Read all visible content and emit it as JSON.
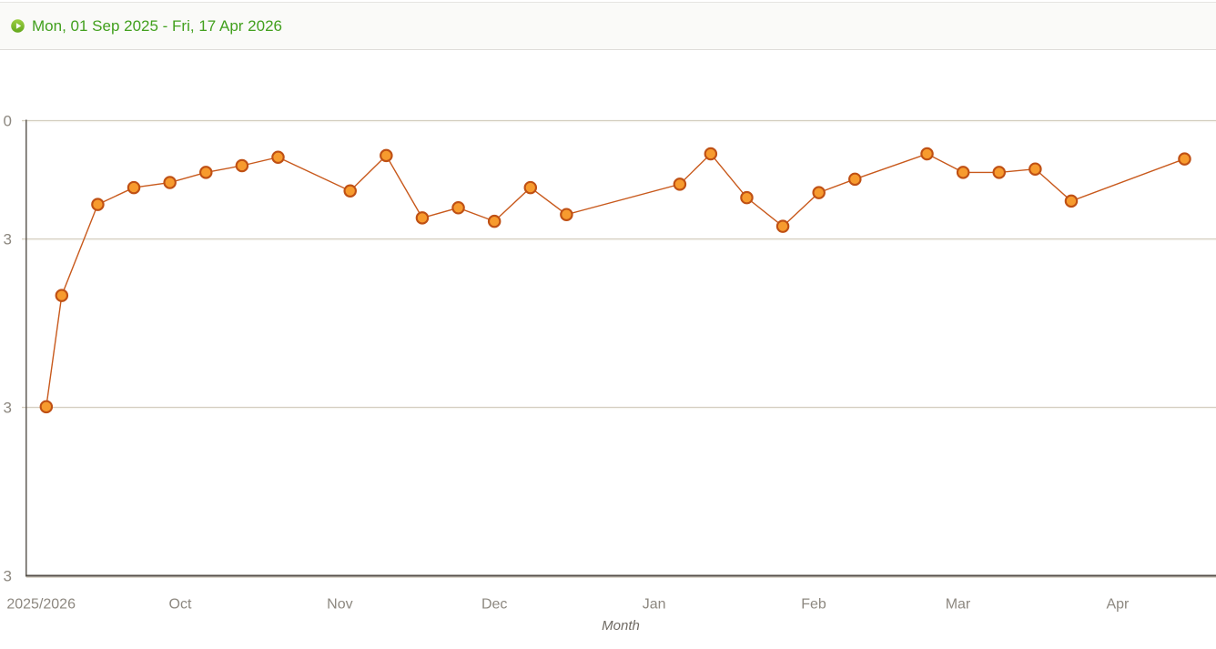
{
  "header": {
    "date_range_label": "Mon, 01 Sep 2025 - Fri, 17 Apr 2026",
    "icon": "play-icon",
    "text_color": "#42a01e",
    "icon_green_light": "#9ecf44",
    "icon_green_dark": "#63a71c",
    "bar_background": "#fafaf8",
    "border_color": "#dedcd9"
  },
  "chart_data": {
    "type": "line",
    "title": "",
    "xlabel": "Month",
    "ylabel": "",
    "legend": false,
    "grid": true,
    "x_axis": {
      "kind": "date",
      "day0": "Mon, 01 Sep 2025",
      "ticks": [
        {
          "label": "2025/2026",
          "day": 3
        },
        {
          "label": "Oct",
          "day": 30
        },
        {
          "label": "Nov",
          "day": 61
        },
        {
          "label": "Dec",
          "day": 91
        },
        {
          "label": "Jan",
          "day": 122
        },
        {
          "label": "Feb",
          "day": 153
        },
        {
          "label": "Mar",
          "day": 181
        },
        {
          "label": "Apr",
          "day": 212
        }
      ]
    },
    "y_axis": {
      "range_est": [
        73,
        100
      ],
      "ticks": [
        {
          "label": "0",
          "value_est": 100
        },
        {
          "label": "3",
          "value_est": 93
        },
        {
          "label": "3",
          "value_est": 83
        },
        {
          "label": "3",
          "value_est": 73
        }
      ],
      "note": "y tick labels are clipped by the left viewport edge; only the last digit of each is visible"
    },
    "series": [
      {
        "name": "series-1",
        "line_color": "#c8591c",
        "marker_fill": "#f79b2e",
        "marker_stroke": "#bf5014",
        "points": [
          {
            "day": 4,
            "value": 83.0,
            "date_est": "2025-09-05"
          },
          {
            "day": 7,
            "value": 89.6,
            "date_est": "2025-09-08"
          },
          {
            "day": 14,
            "value": 95.0,
            "date_est": "2025-09-15"
          },
          {
            "day": 21,
            "value": 96.0,
            "date_est": "2025-09-22"
          },
          {
            "day": 28,
            "value": 96.3,
            "date_est": "2025-09-29"
          },
          {
            "day": 35,
            "value": 96.9,
            "date_est": "2025-10-06"
          },
          {
            "day": 42,
            "value": 97.3,
            "date_est": "2025-10-13"
          },
          {
            "day": 49,
            "value": 97.8,
            "date_est": "2025-10-20"
          },
          {
            "day": 63,
            "value": 95.8,
            "date_est": "2025-11-03"
          },
          {
            "day": 70,
            "value": 97.9,
            "date_est": "2025-11-10"
          },
          {
            "day": 77,
            "value": 94.2,
            "date_est": "2025-11-17"
          },
          {
            "day": 84,
            "value": 94.8,
            "date_est": "2025-11-24"
          },
          {
            "day": 91,
            "value": 94.0,
            "date_est": "2025-12-01"
          },
          {
            "day": 98,
            "value": 96.0,
            "date_est": "2025-12-08"
          },
          {
            "day": 105,
            "value": 94.4,
            "date_est": "2025-12-15"
          },
          {
            "day": 127,
            "value": 96.2,
            "date_est": "2026-01-06"
          },
          {
            "day": 133,
            "value": 98.0,
            "date_est": "2026-01-12"
          },
          {
            "day": 140,
            "value": 95.4,
            "date_est": "2026-01-19"
          },
          {
            "day": 147,
            "value": 93.7,
            "date_est": "2026-01-26"
          },
          {
            "day": 154,
            "value": 95.7,
            "date_est": "2026-02-02"
          },
          {
            "day": 161,
            "value": 96.5,
            "date_est": "2026-02-09"
          },
          {
            "day": 175,
            "value": 98.0,
            "date_est": "2026-02-23"
          },
          {
            "day": 182,
            "value": 96.9,
            "date_est": "2026-03-02"
          },
          {
            "day": 189,
            "value": 96.9,
            "date_est": "2026-03-09"
          },
          {
            "day": 196,
            "value": 97.1,
            "date_est": "2026-03-16"
          },
          {
            "day": 203,
            "value": 95.2,
            "date_est": "2026-03-23"
          },
          {
            "day": 225,
            "value": 97.7,
            "date_est": "2026-04-13"
          }
        ]
      }
    ],
    "colors": {
      "gridline": "#d4cec0",
      "gridline_highlight": "#f6f4ef",
      "axis": "#56504a",
      "tick_label": "#8d8880",
      "axis_title": "#6f6a63"
    }
  }
}
